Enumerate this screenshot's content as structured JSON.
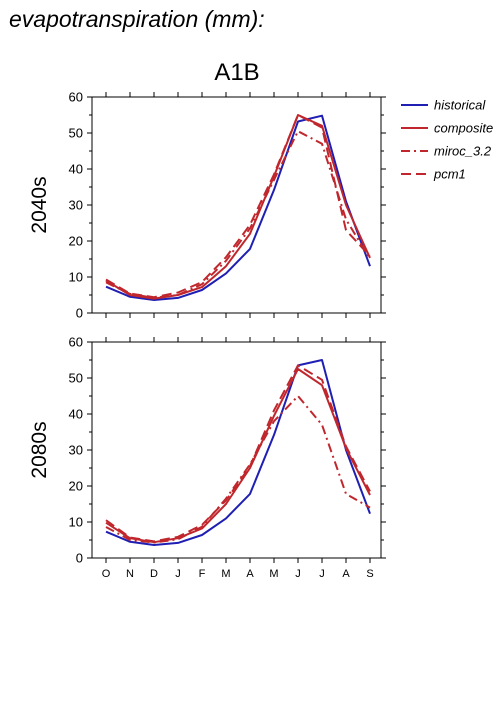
{
  "title": "evapotranspiration (mm):",
  "subtitle": "A1B",
  "legend": {
    "placement": "right",
    "entries": [
      "historical",
      "composite",
      "miroc_3.2",
      "pcm1"
    ]
  },
  "colors": {
    "historical": "#1f1fb4",
    "composite": "#c0272d",
    "miroc_3.2": "#c0272d",
    "pcm1": "#c0272d"
  },
  "chart_data": [
    {
      "type": "line",
      "panel_label": "2040s",
      "categories": [
        "O",
        "N",
        "D",
        "J",
        "F",
        "M",
        "A",
        "M",
        "J",
        "J",
        "A",
        "S"
      ],
      "ylim": [
        0,
        60
      ],
      "yticks": [
        0,
        10,
        20,
        30,
        40,
        50,
        60
      ],
      "grid": false,
      "series": [
        {
          "name": "historical",
          "values": [
            7.3,
            4.5,
            3.6,
            4.2,
            6.4,
            11.0,
            17.8,
            34.2,
            53.2,
            54.8,
            31.0,
            13.0
          ]
        },
        {
          "name": "composite",
          "values": [
            9.0,
            5.0,
            4.0,
            5.0,
            7.2,
            13.0,
            22.0,
            38.0,
            55.0,
            52.0,
            30.0,
            15.3
          ]
        },
        {
          "name": "miroc_3.2",
          "values": [
            8.5,
            5.3,
            4.2,
            5.0,
            8.0,
            14.5,
            23.5,
            37.0,
            50.5,
            47.0,
            26.0,
            15.0
          ]
        },
        {
          "name": "pcm1",
          "values": [
            9.3,
            5.4,
            4.4,
            5.7,
            8.6,
            15.5,
            24.5,
            38.5,
            55.0,
            51.5,
            23.0,
            15.8
          ]
        }
      ]
    },
    {
      "type": "line",
      "panel_label": "2080s",
      "categories": [
        "O",
        "N",
        "D",
        "J",
        "F",
        "M",
        "A",
        "M",
        "J",
        "J",
        "A",
        "S"
      ],
      "ylim": [
        0,
        60
      ],
      "yticks": [
        0,
        10,
        20,
        30,
        40,
        50,
        60
      ],
      "grid": false,
      "series": [
        {
          "name": "historical",
          "values": [
            7.3,
            4.5,
            3.6,
            4.2,
            6.4,
            11.0,
            17.8,
            34.2,
            53.5,
            55.0,
            30.0,
            12.3
          ]
        },
        {
          "name": "composite",
          "values": [
            9.8,
            5.5,
            4.4,
            5.5,
            8.2,
            15.0,
            25.0,
            39.5,
            52.5,
            48.0,
            30.5,
            17.5
          ]
        },
        {
          "name": "miroc_3.2",
          "values": [
            8.6,
            5.0,
            4.3,
            5.2,
            8.7,
            16.5,
            26.0,
            38.0,
            45.0,
            37.0,
            17.8,
            14.0
          ]
        },
        {
          "name": "pcm1",
          "values": [
            10.5,
            5.7,
            4.6,
            5.9,
            9.2,
            16.0,
            25.5,
            41.0,
            53.5,
            49.5,
            31.0,
            18.5
          ]
        }
      ]
    }
  ]
}
